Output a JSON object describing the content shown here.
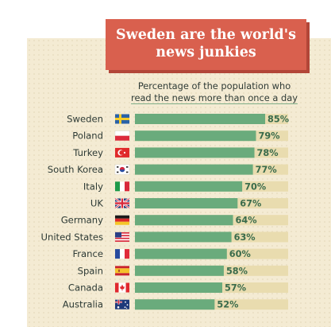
{
  "banner": {
    "title_line1": "Sweden are the world's",
    "title_line2": "news junkies"
  },
  "subtitle": {
    "line1": "Percentage of the population who",
    "line2": "read the news more than once a day"
  },
  "colors": {
    "bar": "#6aab7c",
    "track": "#e9dcaf",
    "banner": "#d9604e"
  },
  "chart_data": {
    "type": "bar",
    "orientation": "horizontal",
    "title": "Sweden are the world's news junkies",
    "subtitle": "Percentage of the population who read the news more than once a day",
    "categories": [
      "Sweden",
      "Poland",
      "Turkey",
      "South Korea",
      "Italy",
      "UK",
      "Germany",
      "United States",
      "France",
      "Spain",
      "Canada",
      "Australia"
    ],
    "values": [
      85,
      79,
      78,
      77,
      70,
      67,
      64,
      63,
      60,
      58,
      57,
      52
    ],
    "value_labels": [
      "85%",
      "79%",
      "78%",
      "77%",
      "70%",
      "67%",
      "64%",
      "63%",
      "60%",
      "58%",
      "57%",
      "52%"
    ],
    "flags": [
      "sweden-flag-icon",
      "poland-flag-icon",
      "turkey-flag-icon",
      "south-korea-flag-icon",
      "italy-flag-icon",
      "uk-flag-icon",
      "germany-flag-icon",
      "usa-flag-icon",
      "france-flag-icon",
      "spain-flag-icon",
      "canada-flag-icon",
      "australia-flag-icon"
    ],
    "xlim": [
      0,
      100
    ],
    "grid": false,
    "legend": "none"
  }
}
